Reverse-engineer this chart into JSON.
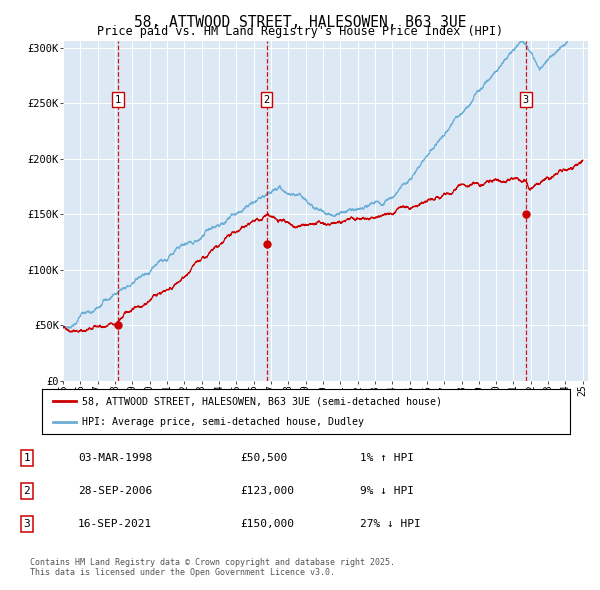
{
  "title": "58, ATTWOOD STREET, HALESOWEN, B63 3UE",
  "subtitle": "Price paid vs. HM Land Registry's House Price Index (HPI)",
  "background_color": "#dce9f5",
  "plot_bg_color": "#dce9f5",
  "x_start_year": 1995,
  "x_end_year": 2025,
  "y_min": 0,
  "y_max": 300000,
  "y_ticks": [
    0,
    50000,
    100000,
    150000,
    200000,
    250000,
    300000
  ],
  "y_tick_labels": [
    "£0",
    "£50K",
    "£100K",
    "£150K",
    "£200K",
    "£250K",
    "£300K"
  ],
  "red_color": "#cc0000",
  "blue_color": "#6baed6",
  "purchase_markers": [
    {
      "year": 1998.17,
      "price": 50500,
      "label": "1"
    },
    {
      "year": 2006.75,
      "price": 123000,
      "label": "2"
    },
    {
      "year": 2021.71,
      "price": 150000,
      "label": "3"
    }
  ],
  "legend_line1": "58, ATTWOOD STREET, HALESOWEN, B63 3UE (semi-detached house)",
  "legend_line2": "HPI: Average price, semi-detached house, Dudley",
  "table_rows": [
    {
      "num": "1",
      "date": "03-MAR-1998",
      "price": "£50,500",
      "hpi": "1% ↑ HPI"
    },
    {
      "num": "2",
      "date": "28-SEP-2006",
      "price": "£123,000",
      "hpi": "9% ↓ HPI"
    },
    {
      "num": "3",
      "date": "16-SEP-2021",
      "price": "£150,000",
      "hpi": "27% ↓ HPI"
    }
  ],
  "footnote": "Contains HM Land Registry data © Crown copyright and database right 2025.\nThis data is licensed under the Open Government Licence v3.0."
}
